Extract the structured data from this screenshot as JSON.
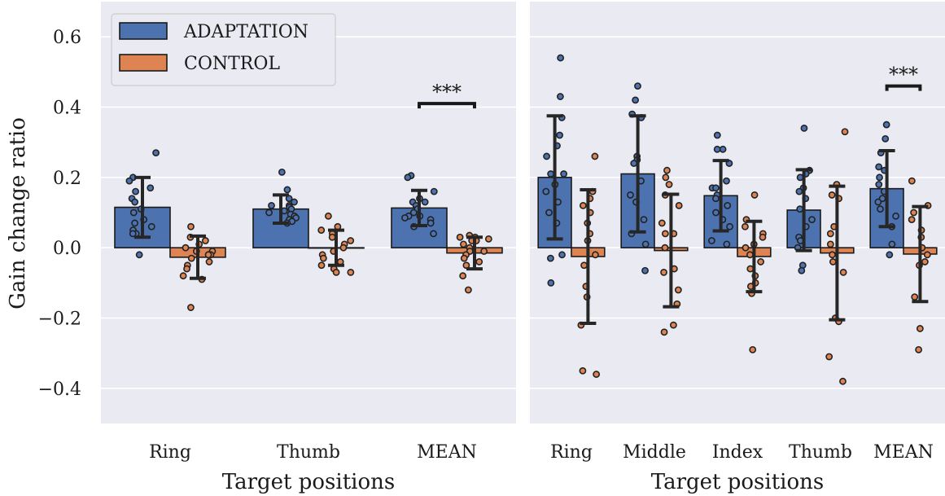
{
  "figure": {
    "ylabel": "Gain change ratio",
    "yticks": [
      "0.6",
      "0.4",
      "0.2",
      "0.0",
      "−0.2",
      "−0.4"
    ],
    "legend": {
      "position": "upper-left of left panel",
      "entries": [
        {
          "label": "ADAPTATION",
          "color": "#4c72b0"
        },
        {
          "label": "CONTROL",
          "color": "#dd8452"
        }
      ]
    },
    "colors": {
      "background": "#eaeaf2",
      "grid": "#ffffff",
      "adaptation": "#4c72b0",
      "control": "#dd8452",
      "edge": "#1a1a1a"
    }
  },
  "chart_data": [
    {
      "type": "bar",
      "panel": "left",
      "xlabel": "Target positions",
      "ylim": [
        -0.5,
        0.7
      ],
      "grid": true,
      "categories": [
        "Ring",
        "Thumb",
        "MEAN"
      ],
      "series": [
        {
          "name": "ADAPTATION",
          "values": [
            0.115,
            0.11,
            0.113
          ],
          "errors": [
            0.085,
            0.04,
            0.05
          ],
          "points": [
            [
              0.27,
              0.2,
              0.19,
              0.17,
              0.16,
              0.14,
              0.13,
              0.11,
              0.1,
              0.08,
              0.07,
              0.06,
              0.05,
              0.04,
              0.04,
              -0.02
            ],
            [
              0.215,
              0.165,
              0.14,
              0.13,
              0.12,
              0.12,
              0.115,
              0.11,
              0.105,
              0.1,
              0.095,
              0.09,
              0.085,
              0.08,
              0.075,
              0.07
            ],
            [
              0.205,
              0.2,
              0.16,
              0.14,
              0.13,
              0.13,
              0.12,
              0.11,
              0.1,
              0.09,
              0.09,
              0.085,
              0.08,
              0.07,
              0.06,
              0.04
            ]
          ]
        },
        {
          "name": "CONTROL",
          "values": [
            -0.027,
            0.0,
            -0.015
          ],
          "errors": [
            0.06,
            0.05,
            0.045
          ],
          "points": [
            [
              0.06,
              0.03,
              0.02,
              0.01,
              0.0,
              -0.01,
              -0.01,
              -0.02,
              -0.02,
              -0.03,
              -0.04,
              -0.05,
              -0.06,
              -0.08,
              -0.09,
              -0.17
            ],
            [
              0.09,
              0.06,
              0.05,
              0.04,
              0.03,
              0.02,
              0.01,
              0.0,
              -0.01,
              -0.02,
              -0.03,
              -0.04,
              -0.05,
              -0.06,
              -0.07,
              -0.07
            ],
            [
              0.035,
              0.03,
              0.03,
              0.025,
              0.02,
              0.02,
              0.01,
              0.0,
              -0.01,
              -0.01,
              -0.02,
              -0.03,
              -0.04,
              -0.05,
              -0.08,
              -0.12
            ]
          ]
        }
      ],
      "annotations": [
        {
          "text": "***",
          "category": "MEAN",
          "y": 0.41
        }
      ]
    },
    {
      "type": "bar",
      "panel": "right",
      "xlabel": "Target positions",
      "ylim": [
        -0.5,
        0.7
      ],
      "grid": true,
      "categories": [
        "Ring",
        "Middle",
        "Index",
        "Thumb",
        "MEAN"
      ],
      "series": [
        {
          "name": "ADAPTATION",
          "values": [
            0.2,
            0.21,
            0.148,
            0.107,
            0.168
          ],
          "errors": [
            0.175,
            0.165,
            0.1,
            0.115,
            0.108
          ],
          "points": [
            [
              0.54,
              0.43,
              0.37,
              0.32,
              0.29,
              0.26,
              0.21,
              0.21,
              0.18,
              0.16,
              0.13,
              0.1,
              0.07,
              -0.02,
              -0.03,
              -0.1
            ],
            [
              0.46,
              0.42,
              0.38,
              0.37,
              0.26,
              0.25,
              0.24,
              0.19,
              0.15,
              0.13,
              0.08,
              0.04,
              0.01,
              -0.065
            ],
            [
              0.32,
              0.28,
              0.28,
              0.24,
              0.19,
              0.17,
              0.17,
              0.15,
              0.14,
              0.12,
              0.1,
              0.08,
              0.06,
              0.02,
              0.01
            ],
            [
              0.34,
              0.22,
              0.21,
              0.2,
              0.17,
              0.16,
              0.14,
              0.11,
              0.08,
              0.06,
              0.03,
              0.02,
              0.0,
              -0.05,
              -0.065
            ],
            [
              0.35,
              0.31,
              0.27,
              0.23,
              0.22,
              0.2,
              0.18,
              0.16,
              0.14,
              0.13,
              0.11,
              0.09,
              0.06,
              0.01,
              -0.02
            ]
          ]
        },
        {
          "name": "CONTROL",
          "values": [
            -0.025,
            -0.008,
            -0.025,
            -0.015,
            -0.018
          ],
          "errors": [
            0.19,
            0.16,
            0.1,
            0.19,
            0.135
          ],
          "points": [
            [
              0.26,
              0.16,
              0.14,
              0.12,
              0.1,
              0.07,
              0.04,
              0.02,
              -0.02,
              -0.05,
              -0.11,
              -0.14,
              -0.22,
              -0.35,
              -0.36
            ],
            [
              0.22,
              0.2,
              0.18,
              0.15,
              0.12,
              0.07,
              0.04,
              0.04,
              0.0,
              -0.06,
              -0.07,
              -0.12,
              -0.16,
              -0.22,
              -0.24
            ],
            [
              0.15,
              0.08,
              0.06,
              0.04,
              0.03,
              0.01,
              0.0,
              -0.02,
              -0.04,
              -0.06,
              -0.08,
              -0.1,
              -0.11,
              -0.13,
              -0.29
            ],
            [
              0.33,
              0.18,
              0.15,
              0.14,
              0.06,
              0.04,
              0.01,
              -0.02,
              -0.04,
              -0.07,
              -0.2,
              -0.21,
              -0.31,
              -0.38
            ],
            [
              0.19,
              0.12,
              0.1,
              0.08,
              0.05,
              0.03,
              0.0,
              -0.02,
              -0.04,
              -0.05,
              -0.14,
              -0.23,
              -0.29
            ]
          ]
        }
      ],
      "annotations": [
        {
          "text": "***",
          "category": "MEAN",
          "y": 0.46
        }
      ]
    }
  ]
}
